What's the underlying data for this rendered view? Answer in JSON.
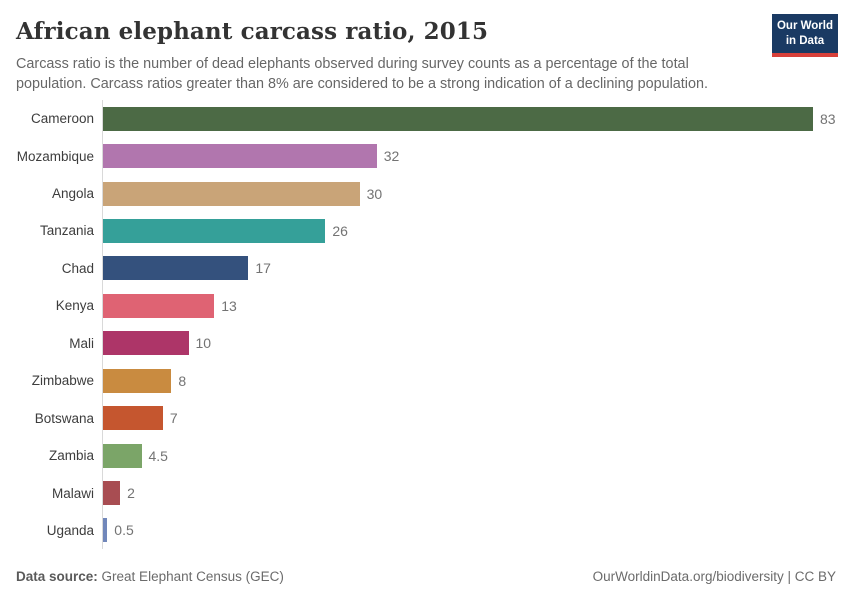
{
  "header": {
    "title": "African elephant carcass ratio, 2015",
    "subtitle": "Carcass ratio is the number of dead elephants observed during survey counts as a percentage of the total population. Carcass ratios greater than 8% are considered to be a strong indication of a declining population.",
    "logo": {
      "line1": "Our World",
      "line2": "in Data",
      "bg_color": "#1A3A63",
      "stripe_color": "#D8403A"
    }
  },
  "chart_data": {
    "type": "bar",
    "orientation": "horizontal",
    "title": "African elephant carcass ratio, 2015",
    "xlabel": "",
    "ylabel": "",
    "xlim": [
      0,
      83
    ],
    "grid": false,
    "categories": [
      "Cameroon",
      "Mozambique",
      "Angola",
      "Tanzania",
      "Chad",
      "Kenya",
      "Mali",
      "Zimbabwe",
      "Botswana",
      "Zambia",
      "Malawi",
      "Uganda"
    ],
    "values": [
      83,
      32,
      30,
      26,
      17,
      13,
      10,
      8,
      7,
      4.5,
      2,
      0.5
    ],
    "value_labels": [
      "83",
      "32",
      "30",
      "26",
      "17",
      "13",
      "10",
      "8",
      "7",
      "4.5",
      "2",
      "0.5"
    ],
    "bar_colors": [
      "#4C6A45",
      "#B176AE",
      "#C9A478",
      "#35A099",
      "#34517D",
      "#DF6373",
      "#AD3568",
      "#C98B40",
      "#C5562F",
      "#7BA568",
      "#A84D52",
      "#7187BA"
    ]
  },
  "footer": {
    "source_label": "Data source:",
    "source_value": "Great Elephant Census (GEC)",
    "credit": "OurWorldinData.org/biodiversity | CC BY"
  },
  "colors": {
    "axis_line": "#D9D9D9",
    "title_text": "#333333",
    "subtitle_text": "#676767",
    "category_text": "#3d3d3d",
    "value_text": "#737373",
    "footer_text": "#6B6B6B"
  }
}
